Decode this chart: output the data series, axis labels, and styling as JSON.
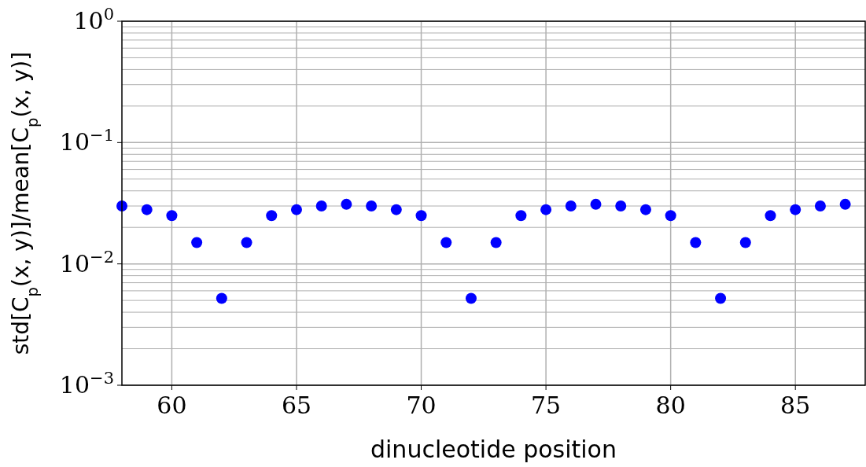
{
  "chart_data": {
    "type": "scatter",
    "xlabel": "dinucleotide position",
    "ylabel": "std[C$_{p}$(x, y)]/mean[C$_{p}$(x, y)]",
    "x": [
      58,
      59,
      60,
      61,
      62,
      63,
      64,
      65,
      66,
      67,
      68,
      69,
      70,
      71,
      72,
      73,
      74,
      75,
      76,
      77,
      78,
      79,
      80,
      81,
      82,
      83,
      84,
      85,
      86,
      87
    ],
    "series": [
      {
        "color": "#0000ff",
        "values": [
          0.03,
          0.028,
          0.025,
          0.015,
          0.0052,
          0.015,
          0.025,
          0.028,
          0.03,
          0.031,
          0.03,
          0.028,
          0.025,
          0.015,
          0.0052,
          0.015,
          0.025,
          0.028,
          0.03,
          0.031,
          0.03,
          0.028,
          0.025,
          0.015,
          0.0052,
          0.015,
          0.025,
          0.028,
          0.03,
          0.031
        ]
      }
    ],
    "xlim": [
      58,
      87.8
    ],
    "xticks": [
      60,
      65,
      70,
      75,
      80,
      85
    ],
    "ylim": [
      0.001,
      1
    ],
    "yticks": [
      {
        "value": 0.001,
        "label": "10$^{−3}$"
      },
      {
        "value": 0.01,
        "label": "10$^{−2}$"
      },
      {
        "value": 0.1,
        "label": "10$^{−1}$"
      },
      {
        "value": 1,
        "label": "10$^{0}$"
      }
    ],
    "log": "y",
    "grid": true,
    "marker": "circle"
  }
}
